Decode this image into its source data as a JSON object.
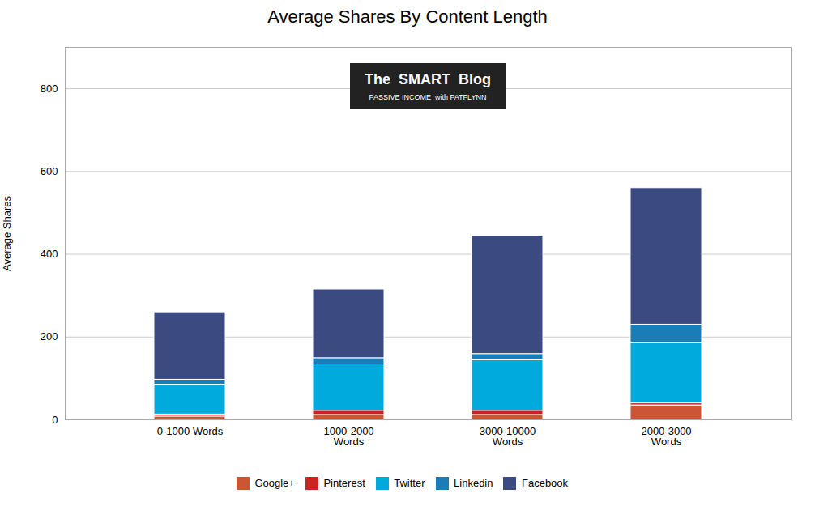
{
  "chart_data": {
    "type": "bar",
    "title": "Average Shares By Content Length",
    "ylabel": "Average Shares",
    "categories": [
      "0-1000 Words",
      "1000-2000\nWords",
      "3000-10000\nWords",
      "2000-3000\nWords"
    ],
    "series": [
      {
        "name": "Google+",
        "color": "#CC5533",
        "values": [
          8,
          12,
          12,
          35
        ]
      },
      {
        "name": "Pinterest",
        "color": "#CC2222",
        "values": [
          5,
          10,
          10,
          5
        ]
      },
      {
        "name": "Twitter",
        "color": "#00AADD",
        "values": [
          72,
          112,
          122,
          145
        ]
      },
      {
        "name": "Linkedin",
        "color": "#1B7DB5",
        "values": [
          12,
          15,
          15,
          45
        ]
      },
      {
        "name": "Facebook",
        "color": "#3B4A80",
        "values": [
          163,
          166,
          286,
          330
        ]
      }
    ],
    "stacked": true,
    "ylim": [
      0,
      900
    ],
    "yticks": [
      0,
      200,
      400,
      600,
      800
    ],
    "grid": true,
    "legend": "bottom",
    "annotations": [
      "The  SMART  Blog",
      "PASSIVE INCOME  with PATFLYNN"
    ]
  }
}
